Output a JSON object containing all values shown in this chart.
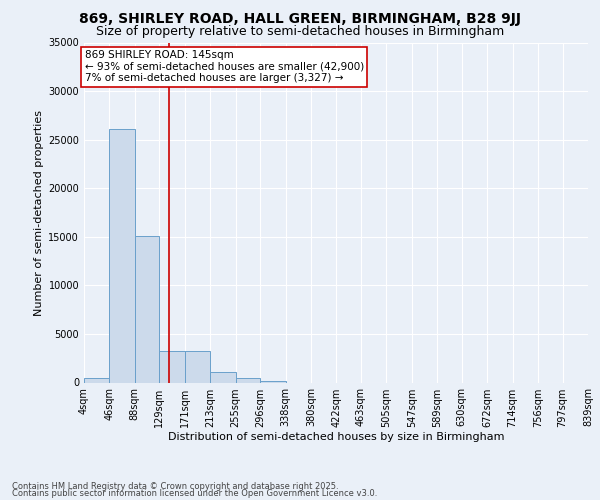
{
  "title1": "869, SHIRLEY ROAD, HALL GREEN, BIRMINGHAM, B28 9JJ",
  "title2": "Size of property relative to semi-detached houses in Birmingham",
  "xlabel": "Distribution of semi-detached houses by size in Birmingham",
  "ylabel": "Number of semi-detached properties",
  "bin_edges": [
    4,
    46,
    88,
    129,
    171,
    213,
    255,
    296,
    338,
    380,
    422,
    463,
    505,
    547,
    589,
    630,
    672,
    714,
    756,
    797,
    839
  ],
  "bin_labels": [
    "4sqm",
    "46sqm",
    "88sqm",
    "129sqm",
    "171sqm",
    "213sqm",
    "255sqm",
    "296sqm",
    "338sqm",
    "380sqm",
    "422sqm",
    "463sqm",
    "505sqm",
    "547sqm",
    "589sqm",
    "630sqm",
    "672sqm",
    "714sqm",
    "756sqm",
    "797sqm",
    "839sqm"
  ],
  "heights": [
    500,
    26100,
    15100,
    3200,
    3200,
    1100,
    500,
    150,
    0,
    0,
    0,
    0,
    0,
    0,
    0,
    0,
    0,
    0,
    0,
    0
  ],
  "bar_color": "#ccdaeb",
  "bar_edge_color": "#6aa0cb",
  "vline_x": 145,
  "vline_color": "#cc0000",
  "ylim": [
    0,
    35000
  ],
  "yticks": [
    0,
    5000,
    10000,
    15000,
    20000,
    25000,
    30000,
    35000
  ],
  "annotation_line1": "869 SHIRLEY ROAD: 145sqm",
  "annotation_line2": "← 93% of semi-detached houses are smaller (42,900)",
  "annotation_line3": "7% of semi-detached houses are larger (3,327) →",
  "annotation_box_color": "#ffffff",
  "annotation_box_edge": "#cc0000",
  "background_color": "#eaf0f8",
  "grid_color": "#ffffff",
  "footer1": "Contains HM Land Registry data © Crown copyright and database right 2025.",
  "footer2": "Contains public sector information licensed under the Open Government Licence v3.0.",
  "title1_fontsize": 10,
  "title2_fontsize": 9,
  "axis_label_fontsize": 8,
  "tick_fontsize": 7,
  "annotation_fontsize": 7.5,
  "footer_fontsize": 6
}
